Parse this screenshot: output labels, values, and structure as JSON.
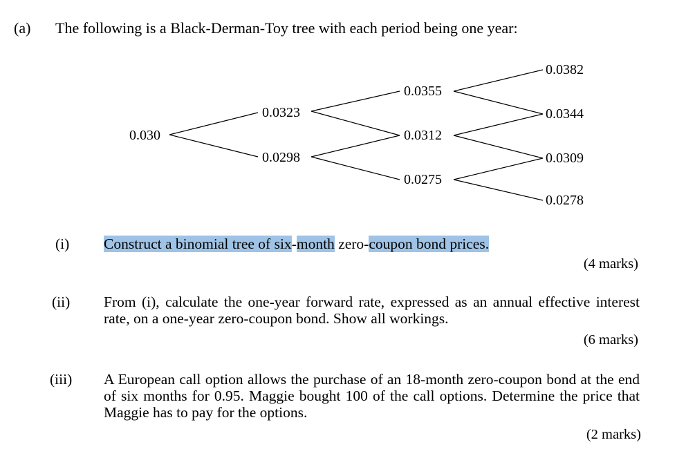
{
  "part_label": "(a)",
  "intro": "The following is a Black-Derman-Toy tree with each period being one year:",
  "tree": {
    "period0": [
      "0.030"
    ],
    "period1": [
      "0.0323",
      "0.0298"
    ],
    "period2": [
      "0.0355",
      "0.0312",
      "0.0275"
    ],
    "period3": [
      "0.0382",
      "0.0344",
      "0.0309",
      "0.0278"
    ]
  },
  "questions": [
    {
      "number": "(i)",
      "text_parts": [
        "Construct a binomial tree of six",
        "-",
        "month",
        " zero-",
        "coupon bond prices."
      ],
      "marks": "(4 marks)"
    },
    {
      "number": "(ii)",
      "text": "From (i), calculate the one-year forward rate, expressed as an annual effective interest rate, on a one-year zero-coupon bond. Show all workings.",
      "marks": "(6 marks)"
    },
    {
      "number": "(iii)",
      "text": "A European call option allows the purchase of an 18-month zero-coupon bond at the end of six months for 0.95. Maggie bought 100 of the call options. Determine the price that Maggie has to pay for the options.",
      "marks": "(2 marks)"
    }
  ]
}
